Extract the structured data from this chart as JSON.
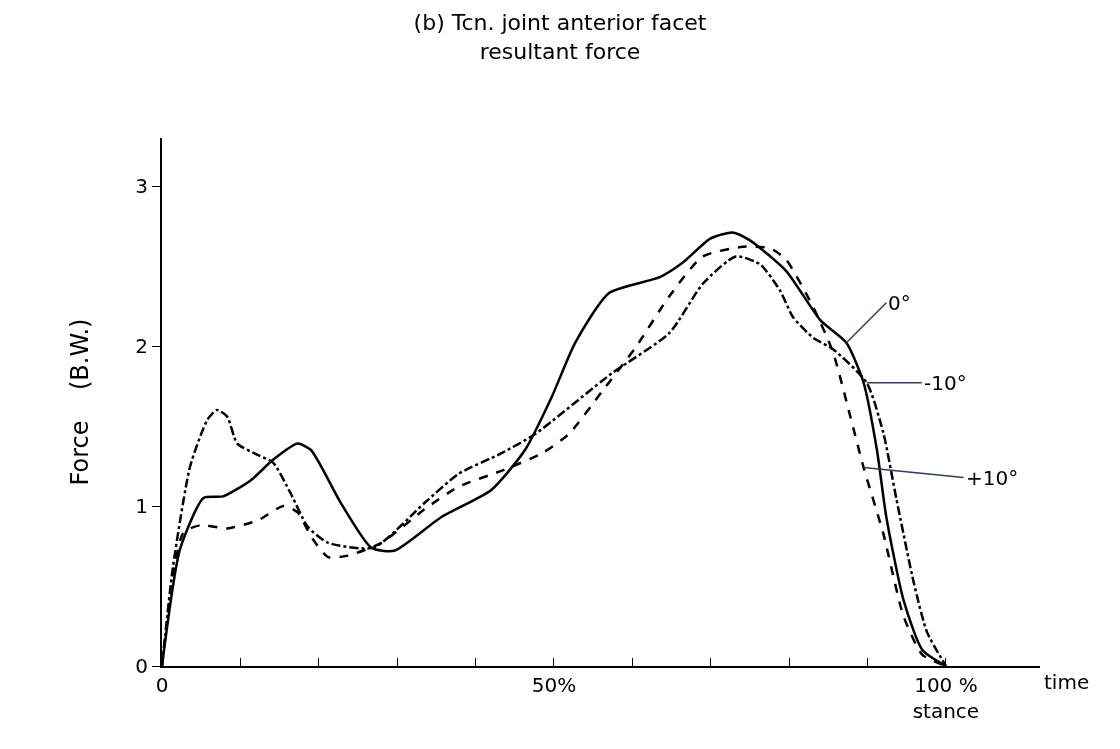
{
  "chart_data": {
    "type": "line",
    "title": "(b) Tcn. joint anterior facet\nresultant force",
    "xlabel": "time",
    "ylabel": "Force    (B.W.)",
    "xlim": [
      0,
      112
    ],
    "xticks": [
      {
        "value": 0,
        "label": "0"
      },
      {
        "value": 10,
        "label": null
      },
      {
        "value": 20,
        "label": null
      },
      {
        "value": 30,
        "label": null
      },
      {
        "value": 40,
        "label": null
      },
      {
        "value": 50,
        "label": "50%"
      },
      {
        "value": 60,
        "label": null
      },
      {
        "value": 70,
        "label": null
      },
      {
        "value": 80,
        "label": null
      },
      {
        "value": 90,
        "label": null
      },
      {
        "value": 100,
        "label": "100 %\nstance"
      }
    ],
    "ylim": [
      0,
      3.3
    ],
    "yticks": [
      0,
      1,
      2,
      3
    ],
    "legend": false,
    "marker": "none",
    "series": [
      {
        "name": "0°",
        "color": "#000000",
        "line_style": "solid",
        "x": [
          0,
          2.3,
          5.3,
          7.8,
          11.3,
          14.2,
          17.3,
          19,
          22.8,
          26.7,
          29.6,
          35.6,
          42,
          46.3,
          49.7,
          52.7,
          57,
          63.5,
          66.4,
          69.9,
          72.8,
          75,
          79.6,
          84,
          87.3,
          89.5,
          91.2,
          92.4,
          94.6,
          97,
          100
        ],
        "values": [
          0,
          0.73,
          1.05,
          1.06,
          1.16,
          1.29,
          1.39,
          1.35,
          1.02,
          0.74,
          0.72,
          0.93,
          1.1,
          1.35,
          1.68,
          2.02,
          2.33,
          2.43,
          2.52,
          2.67,
          2.71,
          2.66,
          2.47,
          2.16,
          2.02,
          1.77,
          1.35,
          0.93,
          0.41,
          0.1,
          0
        ]
      },
      {
        "name": "-10°",
        "color": "#000000",
        "line_style": "dashdot",
        "x": [
          0,
          1.4,
          3.6,
          5.8,
          7,
          8.3,
          9.6,
          12.2,
          14.2,
          16.4,
          18.6,
          21.2,
          27,
          33.5,
          37.8,
          43.3,
          47.6,
          57.4,
          64.7,
          69,
          73.2,
          76.3,
          78.8,
          80.5,
          83.1,
          85.6,
          89.9,
          92,
          93.7,
          95.9,
          97.6,
          100
        ],
        "values": [
          0,
          0.62,
          1.25,
          1.54,
          1.6,
          1.56,
          1.39,
          1.32,
          1.27,
          1.08,
          0.87,
          0.77,
          0.74,
          1.02,
          1.2,
          1.33,
          1.45,
          1.83,
          2.08,
          2.39,
          2.56,
          2.51,
          2.35,
          2.18,
          2.05,
          1.98,
          1.77,
          1.46,
          1.04,
          0.52,
          0.21,
          0
        ]
      },
      {
        "name": "+10°",
        "color": "#000000",
        "line_style": "dashed",
        "x": [
          0,
          2.7,
          4.9,
          8.3,
          12.2,
          15.5,
          17.3,
          19,
          21.2,
          23.7,
          28,
          33.5,
          37.8,
          43.3,
          48.5,
          51.9,
          56.2,
          60.4,
          64.7,
          69,
          74.1,
          77.6,
          79.6,
          83.1,
          85.6,
          87.8,
          89.5,
          92,
          94.6,
          97,
          100
        ],
        "values": [
          0,
          0.83,
          0.88,
          0.86,
          0.91,
          1.0,
          0.96,
          0.81,
          0.68,
          0.69,
          0.77,
          0.98,
          1.12,
          1.22,
          1.33,
          1.45,
          1.72,
          1.99,
          2.31,
          2.56,
          2.62,
          2.61,
          2.54,
          2.24,
          1.96,
          1.56,
          1.24,
          0.83,
          0.31,
          0.07,
          0
        ]
      }
    ]
  }
}
